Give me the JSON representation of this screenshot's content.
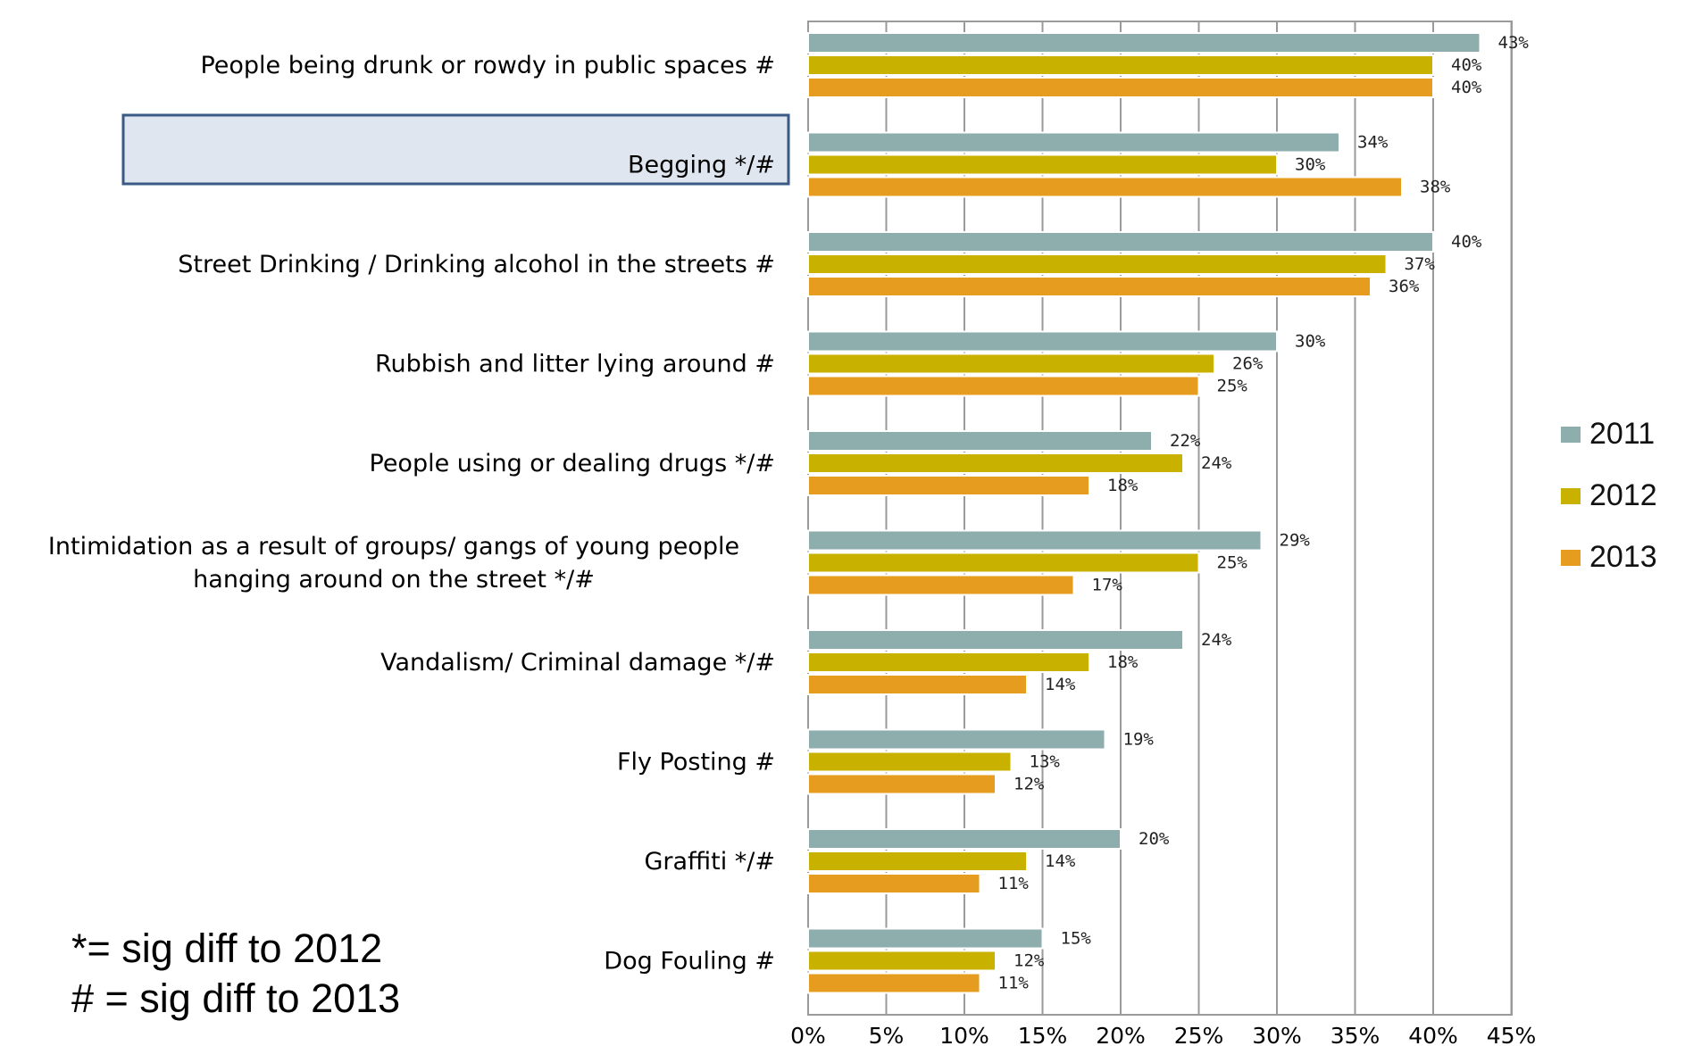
{
  "chart_data": {
    "type": "bar",
    "orientation": "horizontal",
    "categories": [
      "People being drunk or rowdy in public spaces #",
      "Begging */#",
      "Street Drinking / Drinking alcohol in the streets #",
      "Rubbish and litter lying around #",
      "People using or dealing drugs */#",
      "Intimidation as a result of groups/ gangs of young people hanging around on the street */#",
      "Vandalism/ Criminal damage */#",
      "Fly Posting #",
      "Graffiti */#",
      "Dog Fouling #"
    ],
    "category_lines": [
      [
        "People being drunk or rowdy in public spaces #"
      ],
      [
        "Begging */#"
      ],
      [
        "Street Drinking / Drinking alcohol in the streets #"
      ],
      [
        "Rubbish and litter lying around #"
      ],
      [
        "People using or dealing drugs */#"
      ],
      [
        "Intimidation as a result of groups/ gangs of young people",
        "hanging around on the street */#"
      ],
      [
        "Vandalism/ Criminal damage */#"
      ],
      [
        "Fly Posting #"
      ],
      [
        "Graffiti */#"
      ],
      [
        "Dog Fouling #"
      ]
    ],
    "highlighted_category": "Begging */#",
    "series": [
      {
        "name": "2011",
        "color": "#8eaead",
        "values": [
          43,
          34,
          40,
          30,
          22,
          29,
          24,
          19,
          20,
          15
        ]
      },
      {
        "name": "2012",
        "color": "#c9b100",
        "values": [
          40,
          30,
          37,
          26,
          24,
          25,
          18,
          13,
          14,
          12
        ]
      },
      {
        "name": "2013",
        "color": "#e69c1f",
        "values": [
          40,
          38,
          36,
          25,
          18,
          17,
          14,
          12,
          11,
          11
        ]
      }
    ],
    "value_suffix": "%",
    "xlim": [
      0,
      45
    ],
    "x_ticks": [
      "0%",
      "5%",
      "10%",
      "15%",
      "20%",
      "25%",
      "30%",
      "35%",
      "40%",
      "45%"
    ],
    "grid": true,
    "legend_position": "right"
  },
  "notes": [
    "*= sig diff to 2012",
    "# = sig diff to 2013"
  ]
}
